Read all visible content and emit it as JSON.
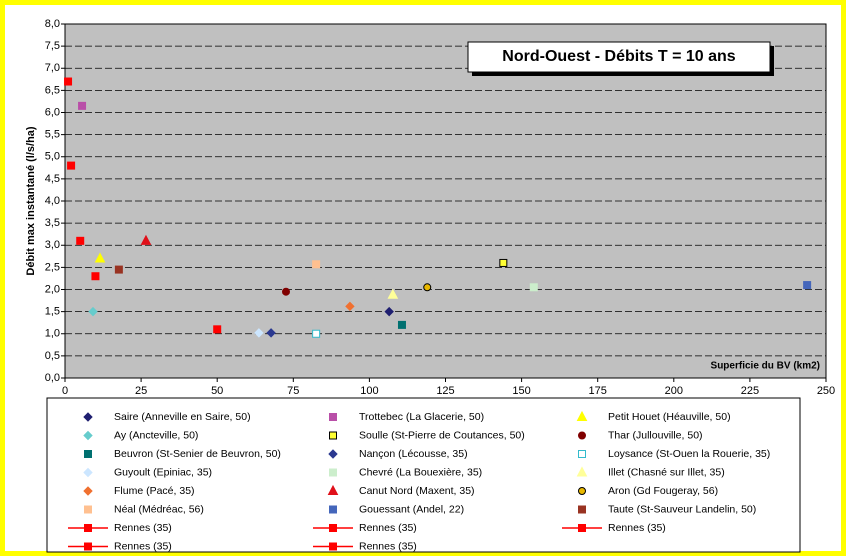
{
  "chart_data": {
    "type": "scatter",
    "title": "Nord-Ouest - Débits T = 10 ans",
    "ylabel": "Débit max instantané (l/s/ha)",
    "xlabel": "Superficie du BV (km2)",
    "xlim": [
      0,
      250
    ],
    "xticks": [
      0,
      25,
      50,
      75,
      100,
      125,
      150,
      175,
      200,
      225,
      250
    ],
    "ylim": [
      0,
      8
    ],
    "yticks": [
      {
        "value": 0,
        "label": "0,0"
      },
      {
        "value": 0.5,
        "label": "0,5"
      },
      {
        "value": 1,
        "label": "1,0"
      },
      {
        "value": 1.5,
        "label": "1,5"
      },
      {
        "value": 2,
        "label": "2,0"
      },
      {
        "value": 2.5,
        "label": "2,5"
      },
      {
        "value": 3,
        "label": "3,0"
      },
      {
        "value": 3.5,
        "label": "3,5"
      },
      {
        "value": 4,
        "label": "4,0"
      },
      {
        "value": 4.5,
        "label": "4,5"
      },
      {
        "value": 5,
        "label": "5,0"
      },
      {
        "value": 5.5,
        "label": "5,5"
      },
      {
        "value": 6,
        "label": "6,0"
      },
      {
        "value": 6.5,
        "label": "6,5"
      },
      {
        "value": 7,
        "label": "7,0"
      },
      {
        "value": 7.5,
        "label": "7,5"
      },
      {
        "value": 8,
        "label": "8,0"
      }
    ],
    "grid": true,
    "series": [
      {
        "name": "Saire (Anneville en Saire, 50)",
        "color": "#1f1f70",
        "marker": "diamond",
        "x": [
          106.5
        ],
        "values": [
          1.5
        ]
      },
      {
        "name": "Trottebec (La Glacerie, 50)",
        "color": "#b94fa8",
        "marker": "square",
        "x": [
          5.6
        ],
        "values": [
          6.15
        ]
      },
      {
        "name": "Petit Houet (Héauville, 50)",
        "color": "#ffff00",
        "marker": "triangle",
        "x": [
          11.5
        ],
        "values": [
          2.7
        ]
      },
      {
        "name": "Ay (Ancteville, 50)",
        "color": "#66cccc",
        "marker": "diamond",
        "x": [
          9.2
        ],
        "values": [
          1.5
        ]
      },
      {
        "name": "Soulle (St-Pierre de Coutances, 50)",
        "color": "#ffff33",
        "edgecolor": "#000000",
        "marker": "square",
        "x": [
          144
        ],
        "values": [
          2.6
        ]
      },
      {
        "name": "Thar (Jullouville, 50)",
        "color": "#800000",
        "marker": "circle",
        "x": [
          72.6
        ],
        "values": [
          1.95
        ]
      },
      {
        "name": "Beuvron (St-Senier de Beuvron, 50)",
        "color": "#007070",
        "marker": "square",
        "x": [
          110.7
        ],
        "values": [
          1.2
        ]
      },
      {
        "name": "Nançon (Lécousse, 35)",
        "color": "#2b3990",
        "marker": "diamond",
        "x": [
          67.7
        ],
        "values": [
          1.02
        ]
      },
      {
        "name": "Loysance (St-Ouen la Rouerie, 35)",
        "color": "#ffffff",
        "edgecolor": "#33bbcc",
        "marker": "square",
        "x": [
          82.5
        ],
        "values": [
          1.0
        ]
      },
      {
        "name": "Guyoult (Epiniac, 35)",
        "color": "#cce6ff",
        "marker": "diamond",
        "x": [
          63.7
        ],
        "values": [
          1.02
        ]
      },
      {
        "name": "Chevré (La Bouexière, 35)",
        "color": "#cceecc",
        "marker": "square",
        "x": [
          154
        ],
        "values": [
          2.05
        ]
      },
      {
        "name": "Illet (Chasné sur Illet, 35)",
        "color": "#ffff99",
        "marker": "triangle",
        "x": [
          107.7
        ],
        "values": [
          1.88
        ]
      },
      {
        "name": "Flume (Pacé, 35)",
        "color": "#f07030",
        "marker": "diamond",
        "x": [
          93.6
        ],
        "values": [
          1.62
        ]
      },
      {
        "name": "Canut Nord (Maxent, 35)",
        "color": "#e0101a",
        "marker": "triangle",
        "x": [
          26.6
        ],
        "values": [
          3.1
        ]
      },
      {
        "name": "Aron (Gd Fougeray, 56)",
        "color": "#e8b800",
        "edgecolor": "#000000",
        "marker": "circle",
        "x": [
          119
        ],
        "values": [
          2.05
        ]
      },
      {
        "name": "Néal (Médréac, 56)",
        "color": "#ffc090",
        "marker": "square",
        "x": [
          82.5
        ],
        "values": [
          2.57
        ]
      },
      {
        "name": "Gouessant (Andel, 22)",
        "color": "#4466bb",
        "marker": "square",
        "x": [
          243.8
        ],
        "values": [
          2.1
        ]
      },
      {
        "name": "Taute (St-Sauveur Landelin, 50)",
        "color": "#993322",
        "marker": "square",
        "x": [
          17.7
        ],
        "values": [
          2.45
        ]
      },
      {
        "name": "Rennes (35)",
        "color": "#ff0000",
        "marker": "square",
        "line": true,
        "x": [
          1.0
        ],
        "values": [
          6.7
        ]
      },
      {
        "name": "Rennes (35)",
        "color": "#ff0000",
        "marker": "square",
        "line": true,
        "x": [
          2.0
        ],
        "values": [
          4.8
        ]
      },
      {
        "name": "Rennes (35)",
        "color": "#ff0000",
        "marker": "square",
        "line": true,
        "x": [
          5.0
        ],
        "values": [
          3.1
        ]
      },
      {
        "name": "Rennes (35)",
        "color": "#ff0000",
        "marker": "square",
        "line": true,
        "x": [
          10.0
        ],
        "values": [
          2.3
        ]
      },
      {
        "name": "Rennes (35)",
        "color": "#ff0000",
        "marker": "square",
        "line": true,
        "x": [
          50.0
        ],
        "values": [
          1.1
        ]
      }
    ]
  }
}
